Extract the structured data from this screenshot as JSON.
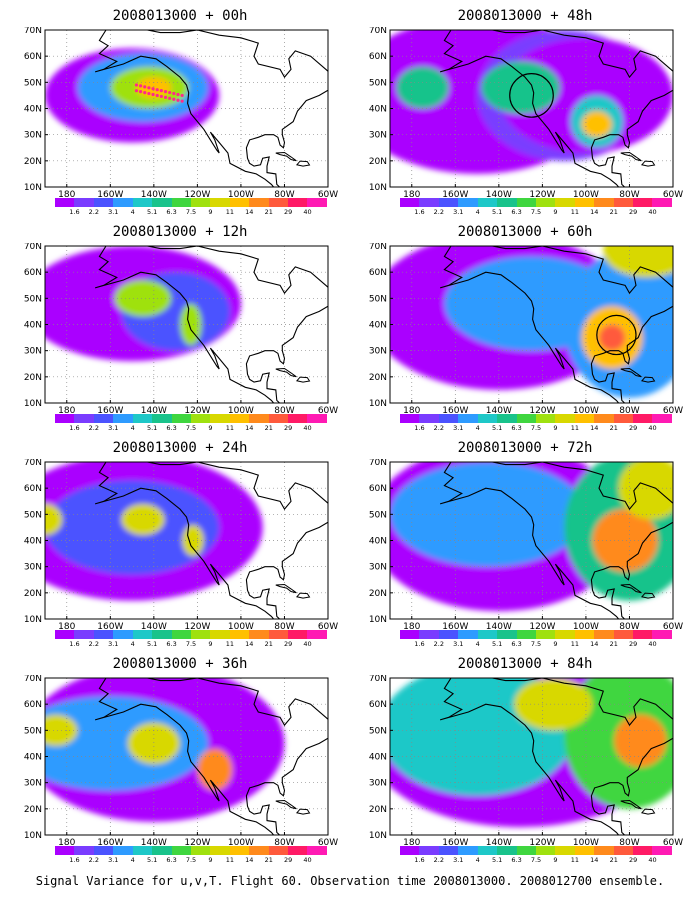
{
  "footer_caption": "Signal Variance for u,v,T. Flight 60. Observation time 2008013000. 2008012700 ensemble.",
  "axes": {
    "lat_labels": [
      "70N",
      "60N",
      "50N",
      "40N",
      "30N",
      "20N",
      "10N"
    ],
    "lon_labels": [
      "180",
      "160W",
      "140W",
      "120W",
      "100W",
      "80W",
      "60W"
    ],
    "lat_range": [
      10,
      70
    ],
    "lon_range": [
      -190,
      -60
    ]
  },
  "colorbar": {
    "labels": [
      "1.6",
      "2.2",
      "3.1",
      "4",
      "5.1",
      "6.3",
      "7.5",
      "9",
      "11",
      "14",
      "21",
      "29",
      "40"
    ],
    "colors": [
      "#aa00ff",
      "#7a3cff",
      "#4b53ff",
      "#2e9bff",
      "#1ec8c8",
      "#19c38b",
      "#3fd63f",
      "#9fe10f",
      "#d8d800",
      "#ffc000",
      "#ff8a1c",
      "#ff5a3c",
      "#ff1a66",
      "#ff1ab3"
    ]
  },
  "panels": [
    {
      "id": "p00",
      "title": "2008013000 + 00h"
    },
    {
      "id": "p48",
      "title": "2008013000 + 48h"
    },
    {
      "id": "p12",
      "title": "2008013000 + 12h"
    },
    {
      "id": "p60",
      "title": "2008013000 + 60h"
    },
    {
      "id": "p24",
      "title": "2008013000 + 24h"
    },
    {
      "id": "p72",
      "title": "2008013000 + 72h"
    },
    {
      "id": "p36",
      "title": "2008013000 + 36h"
    },
    {
      "id": "p84",
      "title": "2008013000 + 84h"
    }
  ],
  "features": {
    "p00": {
      "blobs": [
        {
          "lat": 45,
          "lon": -150,
          "rlat": 18,
          "rlon": 40,
          "level": 0
        },
        {
          "lat": 48,
          "lon": -145,
          "rlat": 13,
          "rlon": 30,
          "level": 3
        },
        {
          "lat": 48,
          "lon": -142,
          "rlat": 8,
          "rlon": 18,
          "level": 7
        },
        {
          "lat": 48,
          "lon": -140,
          "rlat": 4,
          "rlon": 8,
          "level": 9
        }
      ],
      "flight_track": {
        "from": [
          49,
          -148
        ],
        "to": [
          45,
          -127
        ],
        "points": 12
      },
      "circles": []
    },
    "p48": {
      "blobs": [
        {
          "lat": 45,
          "lon": -150,
          "rlat": 30,
          "rlon": 60,
          "level": 0
        },
        {
          "lat": 45,
          "lon": -110,
          "rlat": 25,
          "rlon": 40,
          "level": 1
        },
        {
          "lat": 45,
          "lon": -100,
          "rlat": 22,
          "rlon": 40,
          "level": 0
        },
        {
          "lat": 48,
          "lon": -130,
          "rlat": 10,
          "rlon": 18,
          "level": 5
        },
        {
          "lat": 48,
          "lon": -175,
          "rlat": 8,
          "rlon": 12,
          "level": 5
        },
        {
          "lat": 35,
          "lon": -95,
          "rlat": 10,
          "rlon": 12,
          "level": 4
        },
        {
          "lat": 34,
          "lon": -95,
          "rlat": 5,
          "rlon": 7,
          "level": 9
        }
      ],
      "flight_track": null,
      "circles": [
        {
          "lat": 45,
          "lon": -125,
          "r_lon": 10
        }
      ]
    },
    "p12": {
      "blobs": [
        {
          "lat": 48,
          "lon": -150,
          "rlat": 22,
          "rlon": 50,
          "level": 0
        },
        {
          "lat": 45,
          "lon": -130,
          "rlat": 15,
          "rlon": 25,
          "level": 2
        },
        {
          "lat": 50,
          "lon": -145,
          "rlat": 7,
          "rlon": 13,
          "level": 7
        },
        {
          "lat": 40,
          "lon": -123,
          "rlat": 8,
          "rlon": 5,
          "level": 7
        }
      ],
      "flight_track": null,
      "circles": []
    },
    "p60": {
      "blobs": [
        {
          "lat": 45,
          "lon": -140,
          "rlat": 30,
          "rlon": 60,
          "level": 0
        },
        {
          "lat": 48,
          "lon": -125,
          "rlat": 18,
          "rlon": 40,
          "level": 3
        },
        {
          "lat": 40,
          "lon": -80,
          "rlat": 28,
          "rlon": 30,
          "level": 3
        },
        {
          "lat": 35,
          "lon": -88,
          "rlat": 12,
          "rlon": 14,
          "level": 9
        },
        {
          "lat": 35,
          "lon": -88,
          "rlat": 5,
          "rlon": 6,
          "level": 11
        },
        {
          "lat": 68,
          "lon": -72,
          "rlat": 10,
          "rlon": 20,
          "level": 8
        }
      ],
      "flight_track": null,
      "circles": [
        {
          "lat": 36,
          "lon": -86,
          "r_lon": 9
        }
      ]
    },
    "p24": {
      "blobs": [
        {
          "lat": 45,
          "lon": -150,
          "rlat": 28,
          "rlon": 60,
          "level": 0
        },
        {
          "lat": 45,
          "lon": -150,
          "rlat": 18,
          "rlon": 40,
          "level": 2
        },
        {
          "lat": 48,
          "lon": -145,
          "rlat": 6,
          "rlon": 10,
          "level": 8
        },
        {
          "lat": 40,
          "lon": -122,
          "rlat": 6,
          "rlon": 5,
          "level": 8
        },
        {
          "lat": 48,
          "lon": -190,
          "rlat": 6,
          "rlon": 8,
          "level": 8
        }
      ],
      "flight_track": null,
      "circles": []
    },
    "p72": {
      "blobs": [
        {
          "lat": 45,
          "lon": -140,
          "rlat": 32,
          "rlon": 60,
          "level": 0
        },
        {
          "lat": 50,
          "lon": -145,
          "rlat": 20,
          "rlon": 45,
          "level": 3
        },
        {
          "lat": 45,
          "lon": -80,
          "rlat": 28,
          "rlon": 30,
          "level": 5
        },
        {
          "lat": 40,
          "lon": -82,
          "rlat": 12,
          "rlon": 15,
          "level": 10
        },
        {
          "lat": 60,
          "lon": -70,
          "rlat": 12,
          "rlon": 15,
          "level": 8
        }
      ],
      "flight_track": null,
      "circles": []
    },
    "p36": {
      "blobs": [
        {
          "lat": 45,
          "lon": -140,
          "rlat": 30,
          "rlon": 60,
          "level": 0
        },
        {
          "lat": 45,
          "lon": -160,
          "rlat": 18,
          "rlon": 45,
          "level": 3
        },
        {
          "lat": 45,
          "lon": -140,
          "rlat": 8,
          "rlon": 12,
          "level": 8
        },
        {
          "lat": 35,
          "lon": -112,
          "rlat": 8,
          "rlon": 8,
          "level": 10
        },
        {
          "lat": 50,
          "lon": -185,
          "rlat": 6,
          "rlon": 10,
          "level": 8
        }
      ],
      "flight_track": null,
      "circles": []
    },
    "p84": {
      "blobs": [
        {
          "lat": 45,
          "lon": -130,
          "rlat": 32,
          "rlon": 70,
          "level": 0
        },
        {
          "lat": 50,
          "lon": -150,
          "rlat": 25,
          "rlon": 45,
          "level": 4
        },
        {
          "lat": 48,
          "lon": -80,
          "rlat": 28,
          "rlon": 30,
          "level": 6
        },
        {
          "lat": 46,
          "lon": -75,
          "rlat": 10,
          "rlon": 12,
          "level": 10
        },
        {
          "lat": 60,
          "lon": -115,
          "rlat": 10,
          "rlon": 18,
          "level": 8
        }
      ],
      "flight_track": null,
      "circles": []
    }
  }
}
